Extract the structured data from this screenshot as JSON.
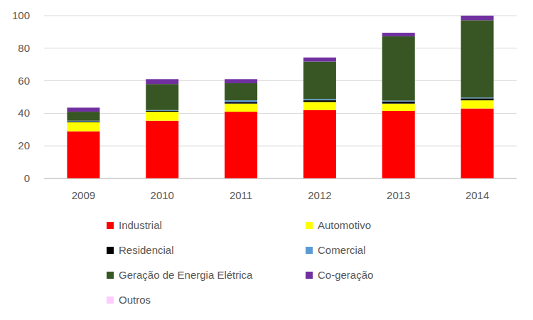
{
  "chart_data": {
    "type": "bar",
    "stacked": true,
    "grid": true,
    "categories": [
      "2009",
      "2010",
      "2011",
      "2012",
      "2013",
      "2014"
    ],
    "ylim": [
      0,
      100
    ],
    "yticks": [
      0,
      20,
      40,
      60,
      80,
      100
    ],
    "series": [
      {
        "name": "Industrial",
        "color": "#ff0000",
        "values": [
          29,
          35.5,
          41,
          42,
          41.5,
          43
        ]
      },
      {
        "name": "Automotivo",
        "color": "#ffff00",
        "values": [
          5.5,
          5.5,
          5,
          5,
          4.5,
          5
        ]
      },
      {
        "name": "Residencial",
        "color": "#000000",
        "values": [
          0.5,
          0.5,
          1,
          1,
          1.3,
          1.2
        ]
      },
      {
        "name": "Comercial",
        "color": "#5b9bd5",
        "values": [
          0.5,
          0.5,
          1,
          0.8,
          0.5,
          0.5
        ]
      },
      {
        "name": "Geração de Energia Elétrica",
        "color": "#375623",
        "values": [
          5.5,
          16,
          10.5,
          23,
          39.5,
          47.5
        ]
      },
      {
        "name": "Co-geração",
        "color": "#7030a0",
        "values": [
          2.5,
          3,
          2.5,
          2.5,
          2.2,
          2.8
        ]
      },
      {
        "name": "Outros",
        "color": "#ffccff",
        "values": [
          0,
          0,
          0,
          0,
          0,
          0
        ]
      }
    ]
  }
}
